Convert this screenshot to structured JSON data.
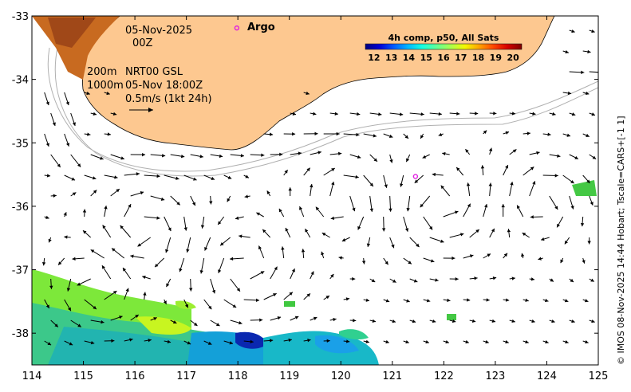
{
  "map": {
    "date": "05-Nov-2025",
    "time": "00Z",
    "depth_1": "200m",
    "depth_2": "1000m",
    "product_1": "NRT00 GSL",
    "product_2": "05-Nov 18:00Z",
    "scale_vector": "0.5m/s (1kt 24h)",
    "argo_label": "Argo",
    "credit": "© IMOS 08-Nov-2025 14:44 Hobart; Tscale=CARS+[-1 1]",
    "lon_range": [
      114,
      125
    ],
    "lat_range": [
      -38.5,
      -33
    ],
    "lon_ticks": [
      "114",
      "115",
      "116",
      "117",
      "118",
      "119",
      "120",
      "121",
      "122",
      "123",
      "124",
      "125"
    ],
    "lat_ticks": [
      "-33",
      "-34",
      "-35",
      "-36",
      "-37",
      "-38"
    ],
    "argo_floats": [
      {
        "lon": 117.98,
        "lat": -33.19
      },
      {
        "lon": 121.45,
        "lat": -35.53
      }
    ],
    "colors": {
      "land": "#fdc890",
      "land_edge": "#000000",
      "argo_marker": "#e020e0",
      "isobath": "#b0b0b0"
    }
  },
  "colorbar": {
    "title": "4h comp, p50, All Sats",
    "labels": [
      "12",
      "13",
      "14",
      "15",
      "16",
      "17",
      "18",
      "19",
      "20"
    ],
    "range": [
      11.5,
      20.5
    ],
    "colors": [
      "#00007f",
      "#0000d5",
      "#005bff",
      "#00b8ff",
      "#16ffe1",
      "#60ff97",
      "#aaff4d",
      "#f4f802",
      "#ffa400",
      "#ff4700",
      "#d50000",
      "#7f0000"
    ]
  }
}
